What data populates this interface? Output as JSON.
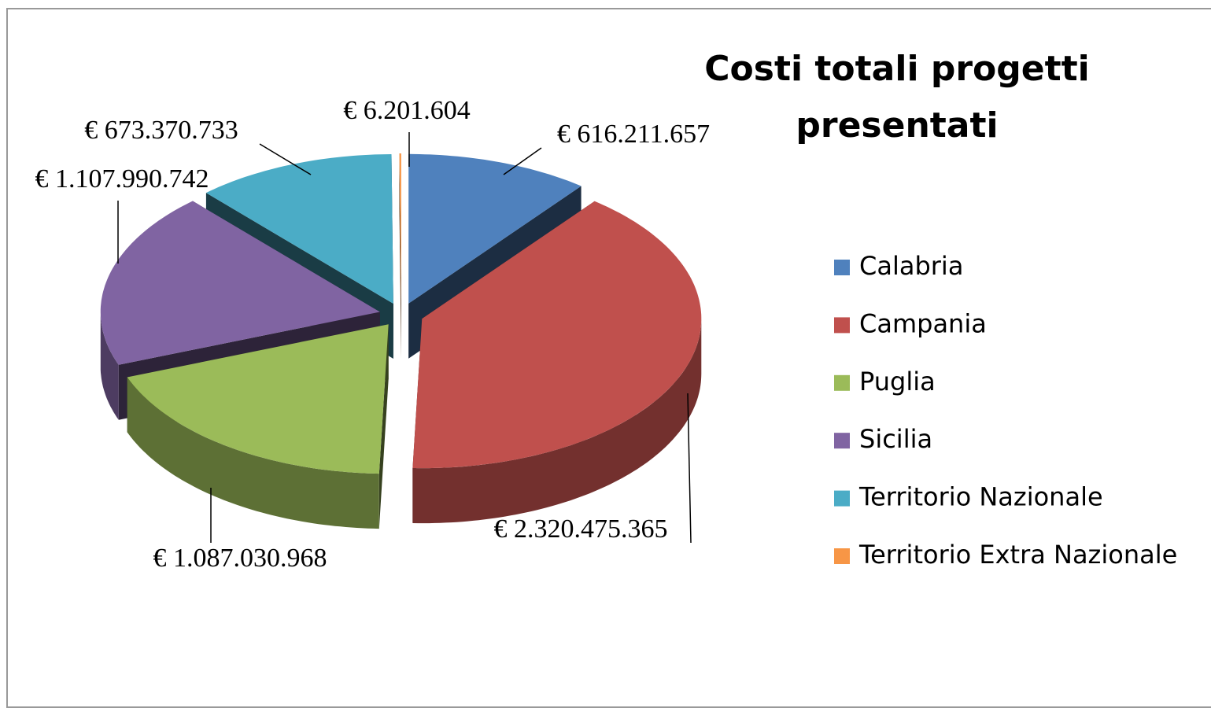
{
  "chart_data": {
    "type": "pie",
    "title": "Costi totali progetti presentati",
    "categories": [
      "Calabria",
      "Campania",
      "Puglia",
      "Sicilia",
      "Territorio Nazionale",
      "Territorio Extra Nazionale"
    ],
    "values": [
      616211657,
      2320475365,
      1087030968,
      1107990742,
      673370733,
      6201604
    ],
    "value_labels": [
      "€ 616.211.657",
      "€ 2.320.475.365",
      "€ 1.087.030.968",
      "€ 1.107.990.742",
      "€ 673.370.733",
      "€ 6.201.604"
    ],
    "colors": [
      "#4f81bd",
      "#c0504d",
      "#9bbb59",
      "#8064a2",
      "#4bacc6",
      "#f79646"
    ],
    "legend": "right"
  }
}
